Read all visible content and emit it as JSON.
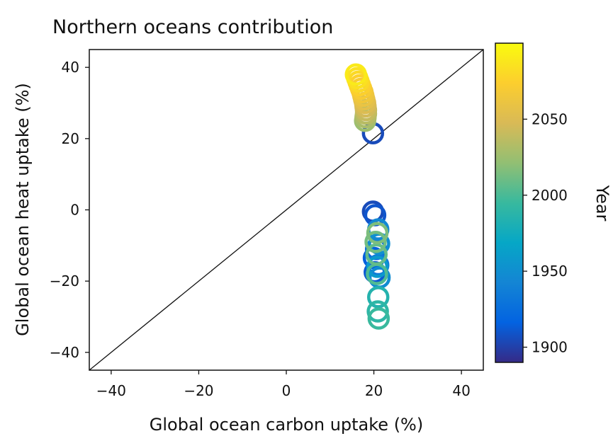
{
  "chart_data": {
    "type": "scatter",
    "title": "Northern oceans contribution",
    "xlabel": "Global ocean carbon uptake (%)",
    "ylabel": "Global ocean heat uptake (%)",
    "xlim": [
      -45,
      45
    ],
    "ylim": [
      -45,
      45
    ],
    "xticks": [
      -40,
      -20,
      0,
      20,
      40
    ],
    "yticks": [
      -40,
      -20,
      0,
      20,
      40
    ],
    "xtick_labels": [
      "−40",
      "−20",
      "0",
      "20",
      "40"
    ],
    "ytick_labels": [
      "−40",
      "−20",
      "0",
      "20",
      "40"
    ],
    "reference_line": "y = x",
    "colorbar": {
      "label": "Year",
      "range": [
        1890,
        2100
      ],
      "ticks": [
        1900,
        1950,
        2000,
        2050
      ],
      "tick_labels": [
        "1900",
        "1950",
        "2000",
        "2050"
      ],
      "colormap": [
        "#352a87",
        "#0363e1",
        "#1485d4",
        "#06a7c6",
        "#38b99e",
        "#92bf73",
        "#d9ba56",
        "#fcce2e",
        "#f9fb0e"
      ]
    },
    "grid": false,
    "series": [
      {
        "marker": "hollow-circle",
        "points": [
          {
            "x": 19.8,
            "y": 21.5,
            "year": 1905
          },
          {
            "x": 19.8,
            "y": -0.5,
            "year": 1905
          },
          {
            "x": 20.3,
            "y": -1.5,
            "year": 1910
          },
          {
            "x": 20.0,
            "y": -13.5,
            "year": 1915
          },
          {
            "x": 20.2,
            "y": -17.5,
            "year": 1912
          },
          {
            "x": 20.5,
            "y": -11.0,
            "year": 1925
          },
          {
            "x": 21.0,
            "y": -5.5,
            "year": 1945
          },
          {
            "x": 21.2,
            "y": -9.5,
            "year": 1950
          },
          {
            "x": 21.0,
            "y": -15.5,
            "year": 1935
          },
          {
            "x": 21.3,
            "y": -19.0,
            "year": 1948
          },
          {
            "x": 20.8,
            "y": -16.0,
            "year": 1958
          },
          {
            "x": 21.0,
            "y": -24.5,
            "year": 1985
          },
          {
            "x": 20.9,
            "y": -28.5,
            "year": 1990
          },
          {
            "x": 21.1,
            "y": -30.5,
            "year": 1995
          },
          {
            "x": 20.7,
            "y": -18.0,
            "year": 2002
          },
          {
            "x": 20.6,
            "y": -12.5,
            "year": 2008
          },
          {
            "x": 20.8,
            "y": -6.5,
            "year": 2015
          },
          {
            "x": 20.4,
            "y": -9.0,
            "year": 2012
          },
          {
            "x": 18.0,
            "y": 25.0,
            "year": 2025
          },
          {
            "x": 18.1,
            "y": 26.0,
            "year": 2030
          },
          {
            "x": 18.2,
            "y": 27.0,
            "year": 2035
          },
          {
            "x": 18.2,
            "y": 28.0,
            "year": 2040
          },
          {
            "x": 18.1,
            "y": 29.0,
            "year": 2045
          },
          {
            "x": 18.0,
            "y": 30.0,
            "year": 2050
          },
          {
            "x": 17.8,
            "y": 31.0,
            "year": 2055
          },
          {
            "x": 17.6,
            "y": 32.0,
            "year": 2060
          },
          {
            "x": 17.4,
            "y": 33.0,
            "year": 2065
          },
          {
            "x": 17.1,
            "y": 34.0,
            "year": 2070
          },
          {
            "x": 16.8,
            "y": 35.0,
            "year": 2075
          },
          {
            "x": 16.5,
            "y": 36.0,
            "year": 2080
          },
          {
            "x": 16.2,
            "y": 37.0,
            "year": 2085
          },
          {
            "x": 15.9,
            "y": 38.0,
            "year": 2090
          }
        ]
      }
    ]
  }
}
